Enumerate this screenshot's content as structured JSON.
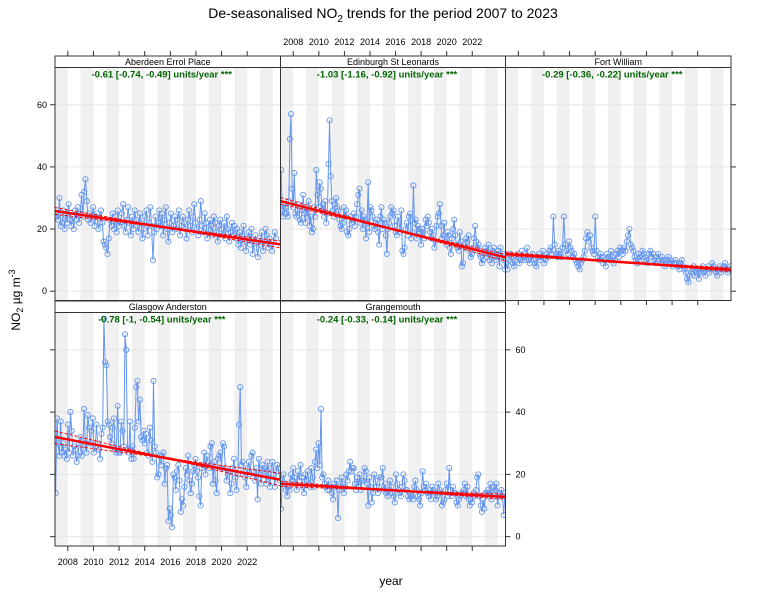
{
  "chart_data": {
    "type": "line",
    "title_prefix": "De-seasonalised NO",
    "title_sub": "2",
    "title_suffix": " trends for the period 2007 to 2023",
    "xlabel": "year",
    "ylabel_prefix": "NO",
    "ylabel_sub": "2",
    "ylabel_suffix": " µg m",
    "ylabel_sup": "-3",
    "xlim": [
      2007,
      2024.6
    ],
    "ylim": [
      -3,
      72
    ],
    "x_ticks": [
      2008,
      2010,
      2012,
      2014,
      2016,
      2018,
      2020,
      2022
    ],
    "y_ticks": [
      0,
      20,
      40,
      60
    ],
    "colors": {
      "points": "#6495ED",
      "trend": "#FF0000",
      "slope_text": "#006400",
      "band": "#F0F0F0"
    },
    "panels": [
      {
        "site": "Aberdeen Errol Place",
        "slope_label": "-0.61 [-0.74, -0.49] units/year ***",
        "trend": {
          "start": 25.8,
          "slope": -0.61,
          "lower": -0.74,
          "upper": -0.49
        },
        "end_year": 2024.3,
        "base": [
          25,
          24,
          23,
          30,
          21,
          22,
          26,
          20,
          25,
          22,
          28,
          23,
          21,
          24,
          20,
          26,
          23,
          27,
          22,
          25,
          31,
          24,
          32,
          36,
          29,
          23,
          25,
          22,
          24,
          27,
          21,
          24,
          25,
          20,
          22,
          26,
          22,
          16,
          15,
          14,
          12,
          17,
          23,
          21,
          25,
          20,
          24,
          19,
          26,
          21,
          22,
          25,
          28,
          21,
          19,
          23,
          27,
          22,
          18,
          24,
          20,
          26,
          23,
          21,
          19,
          25,
          22,
          17,
          20,
          24,
          26,
          18,
          22,
          27,
          21,
          10,
          19,
          24,
          20,
          22,
          26,
          21,
          25,
          18,
          23,
          27,
          20,
          16,
          22,
          25,
          19,
          21,
          24,
          20,
          23,
          26,
          18,
          21,
          24,
          22,
          20,
          17,
          23,
          26,
          21,
          19,
          24,
          28,
          22,
          20,
          18,
          23,
          29,
          21,
          19,
          25,
          22,
          17,
          20,
          23,
          21,
          18,
          24,
          22,
          19,
          16,
          21,
          23,
          20,
          18,
          22,
          17,
          24,
          20,
          16,
          19,
          22,
          18,
          21,
          17,
          20,
          15,
          19,
          14,
          18,
          21,
          16,
          13,
          17,
          19,
          15,
          20,
          12,
          16,
          18,
          14,
          11,
          17,
          15,
          19,
          13,
          16,
          20,
          18,
          14,
          17,
          15,
          13,
          16,
          19,
          17
        ]
      },
      {
        "site": "Edinburgh St Leonards",
        "slope_label": "-1.03 [-1.16, -0.92] units/year ***",
        "trend": {
          "start": 29,
          "slope": -1.03,
          "lower": -1.16,
          "upper": -0.92
        },
        "end_year": 2024.6,
        "base": [
          39,
          26,
          24,
          28,
          27,
          25,
          24,
          29,
          49,
          57,
          33,
          27,
          38,
          25,
          24,
          26,
          28,
          23,
          22,
          26,
          31,
          25,
          22,
          27,
          24,
          29,
          21,
          24,
          19,
          20,
          27,
          24,
          39,
          31,
          27,
          35,
          33,
          26,
          28,
          24,
          29,
          22,
          25,
          41,
          55,
          37,
          29,
          26,
          24,
          28,
          30,
          27,
          26,
          23,
          21,
          20,
          22,
          27,
          24,
          26,
          19,
          18,
          20,
          24,
          22,
          23,
          25,
          21,
          24,
          28,
          31,
          33,
          22,
          26,
          20,
          24,
          23,
          17,
          22,
          35,
          19,
          27,
          26,
          24,
          21,
          20,
          22,
          23,
          19,
          15,
          24,
          27,
          20,
          23,
          22,
          18,
          12,
          20,
          22,
          24,
          27,
          25,
          26,
          21,
          19,
          18,
          24,
          22,
          19,
          26,
          13,
          12,
          14,
          20,
          22,
          18,
          24,
          25,
          17,
          19,
          34,
          22,
          23,
          17,
          21,
          20,
          19,
          15,
          20,
          19,
          17,
          23,
          21,
          24,
          22,
          19,
          17,
          20,
          18,
          14,
          16,
          21,
          24,
          25,
          28,
          21,
          17,
          18,
          22,
          16,
          15,
          19,
          18,
          14,
          12,
          17,
          20,
          23,
          18,
          15,
          14,
          13,
          19,
          16,
          8,
          9,
          15,
          14,
          17,
          16,
          18,
          13,
          11,
          12,
          14,
          17,
          21,
          16,
          14,
          15,
          12,
          11,
          9,
          10,
          12,
          14,
          13,
          11,
          15,
          10,
          12,
          9,
          13,
          14,
          11,
          10,
          12,
          13,
          8,
          14,
          11,
          12,
          10,
          7
        ]
      },
      {
        "site": "Fort William",
        "slope_label": "-0.29 [-0.36, -0.22] units/year ***",
        "trend": {
          "start": 12,
          "slope": -0.29,
          "lower": -0.36,
          "upper": -0.22
        },
        "end_year": 2024.6,
        "base": [
          9,
          7,
          10,
          12,
          11,
          9,
          8,
          10,
          11,
          12,
          9,
          10,
          13,
          11,
          10,
          12,
          14,
          10,
          9,
          11,
          12,
          10,
          9,
          8,
          11,
          12,
          10,
          11,
          13,
          9,
          10,
          12,
          11,
          13,
          14,
          12,
          24,
          15,
          12,
          11,
          13,
          12,
          11,
          14,
          24,
          15,
          13,
          12,
          16,
          14,
          13,
          11,
          12,
          10,
          9,
          8,
          7,
          9,
          10,
          11,
          13,
          17,
          19,
          16,
          18,
          14,
          13,
          12,
          24,
          13,
          11,
          10,
          12,
          11,
          9,
          10,
          8,
          12,
          11,
          10,
          13,
          11,
          9,
          10,
          12,
          13,
          11,
          14,
          13,
          12,
          14,
          13,
          16,
          18,
          20,
          15,
          14,
          13,
          11,
          10,
          9,
          12,
          11,
          10,
          13,
          12,
          11,
          10,
          9,
          12,
          13,
          11,
          12,
          10,
          9,
          11,
          12,
          10,
          9,
          11,
          10,
          8,
          9,
          10,
          11,
          9,
          10,
          8,
          9,
          10,
          9,
          8,
          7,
          9,
          10,
          8,
          7,
          6,
          4,
          3,
          5,
          6,
          7,
          8,
          5,
          6,
          7,
          4,
          6,
          7,
          8,
          6,
          5,
          7,
          8,
          6,
          7,
          9,
          8,
          7,
          6,
          5,
          7,
          8,
          6,
          7,
          8,
          9,
          7,
          6,
          7,
          8
        ]
      },
      {
        "site": "Glasgow Anderston",
        "slope_label": "-0.78 [-1, -0.54] units/year ***",
        "trend": {
          "start": 32,
          "slope": -0.78,
          "lower": -1,
          "upper": -0.54
        },
        "end_year": 2024.6,
        "base": [
          14,
          38,
          30,
          26,
          37,
          27,
          30,
          26,
          28,
          25,
          36,
          27,
          40,
          34,
          26,
          29,
          28,
          24,
          26,
          30,
          32,
          26,
          28,
          41,
          30,
          27,
          39,
          35,
          30,
          34,
          38,
          27,
          29,
          36,
          30,
          28,
          25,
          33,
          35,
          70,
          56,
          55,
          37,
          36,
          32,
          30,
          35,
          38,
          28,
          27,
          42,
          27,
          27,
          37,
          34,
          29,
          65,
          60,
          28,
          27,
          37,
          25,
          29,
          25,
          35,
          48,
          50,
          37,
          44,
          32,
          31,
          34,
          30,
          33,
          27,
          26,
          35,
          31,
          24,
          50,
          29,
          27,
          19,
          20,
          26,
          23,
          26,
          27,
          17,
          22,
          23,
          5,
          9,
          7,
          3,
          20,
          19,
          15,
          21,
          23,
          18,
          8,
          12,
          10,
          16,
          22,
          20,
          26,
          18,
          14,
          17,
          21,
          23,
          25,
          21,
          19,
          13,
          10,
          22,
          23,
          27,
          20,
          26,
          24,
          22,
          29,
          30,
          17,
          24,
          18,
          14,
          25,
          26,
          27,
          22,
          30,
          29,
          22,
          18,
          20,
          21,
          14,
          17,
          22,
          25,
          19,
          15,
          20,
          36,
          48,
          23,
          24,
          21,
          19,
          16,
          22,
          24,
          20,
          26,
          27,
          21,
          18,
          22,
          12,
          25,
          20,
          17,
          23,
          22,
          21,
          17,
          24,
          19,
          16,
          22,
          24,
          20,
          16,
          21,
          23,
          22,
          18
        ]
      },
      {
        "site": "Grangemouth",
        "slope_label": "-0.24 [-0.33, -0.14] units/year ***",
        "trend": {
          "start": 17,
          "slope": -0.24,
          "lower": -0.33,
          "upper": -0.14
        },
        "end_year": 2024.6,
        "base": [
          9,
          18,
          20,
          17,
          15,
          13,
          16,
          15,
          20,
          18,
          22,
          19,
          17,
          15,
          21,
          18,
          23,
          19,
          16,
          14,
          20,
          18,
          21,
          17,
          16,
          22,
          19,
          16,
          24,
          28,
          22,
          30,
          23,
          41,
          19,
          20,
          17,
          16,
          15,
          18,
          15,
          16,
          14,
          12,
          17,
          16,
          18,
          6,
          15,
          16,
          19,
          17,
          14,
          16,
          20,
          18,
          21,
          24,
          21,
          22,
          22,
          17,
          15,
          19,
          16,
          20,
          15,
          18,
          18,
          22,
          21,
          17,
          10,
          19,
          16,
          11,
          14,
          20,
          18,
          16,
          14,
          16,
          19,
          19,
          22,
          15,
          17,
          14,
          13,
          15,
          18,
          16,
          14,
          13,
          11,
          20,
          17,
          15,
          14,
          13,
          16,
          20,
          18,
          15,
          15,
          13,
          12,
          14,
          13,
          12,
          16,
          18,
          15,
          13,
          12,
          10,
          14,
          21,
          16,
          15,
          17,
          14,
          13,
          15,
          12,
          16,
          15,
          14,
          12,
          13,
          17,
          15,
          14,
          10,
          11,
          12,
          15,
          17,
          13,
          22,
          15,
          13,
          16,
          14,
          14,
          11,
          10,
          12,
          13,
          14,
          14,
          15,
          17,
          13,
          16,
          12,
          10,
          12,
          11,
          14,
          13,
          15,
          19,
          20,
          13,
          10,
          8,
          12,
          9,
          14,
          14,
          15,
          13,
          17,
          12,
          14,
          16,
          15,
          17,
          10,
          13,
          14,
          15,
          13,
          7,
          14
        ]
      }
    ]
  }
}
